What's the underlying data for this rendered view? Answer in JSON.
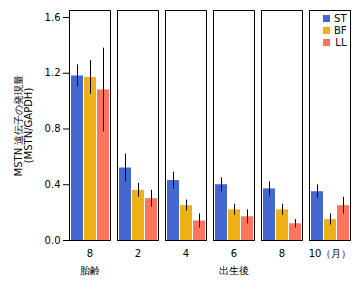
{
  "chart_data": {
    "type": "bar",
    "ylabel": "MSTN 遠伝子の発現量\n(MSTN/GAPDH)",
    "categories": [
      "8",
      "2",
      "4",
      "6",
      "8",
      "10（月）"
    ],
    "series": [
      {
        "name": "ST",
        "values": [
          1.18,
          0.52,
          0.43,
          0.4,
          0.37,
          0.35
        ],
        "errors": [
          0.08,
          0.1,
          0.06,
          0.05,
          0.05,
          0.05
        ]
      },
      {
        "name": "BF",
        "values": [
          1.17,
          0.36,
          0.25,
          0.22,
          0.22,
          0.15
        ],
        "errors": [
          0.12,
          0.05,
          0.04,
          0.04,
          0.04,
          0.04
        ]
      },
      {
        "name": "LL",
        "values": [
          1.08,
          0.3,
          0.14,
          0.17,
          0.12,
          0.25
        ],
        "errors": [
          0.3,
          0.06,
          0.05,
          0.05,
          0.03,
          0.06
        ]
      }
    ],
    "ylim": [
      0.0,
      1.65
    ],
    "yticks": [
      {
        "value": 0.0,
        "label": "0.0"
      },
      0.4,
      0.8,
      1.2,
      1.6
    ],
    "grid": false,
    "legend": "upper right",
    "annotations": [
      {
        "text": "胎齢",
        "count": 1
      },
      {
        "text": "出生後",
        "count": 5
      }
    ]
  }
}
